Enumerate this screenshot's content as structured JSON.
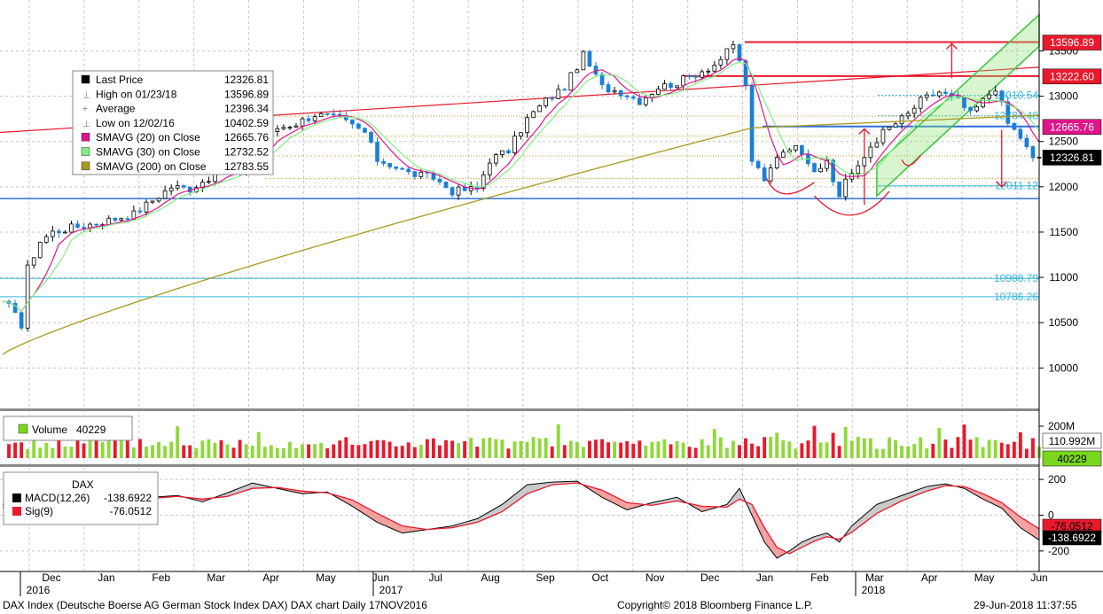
{
  "chart_data": [
    {
      "type": "candlestick",
      "title": "DAX Index (Deutsche Boerse AG German Stock Index DAX) DAX chart",
      "panel": "price",
      "ylim": [
        9700,
        13700
      ],
      "y_ticks": [
        "10000",
        "10500",
        "11000",
        "11500",
        "12000",
        "12500",
        "13000",
        "13500"
      ],
      "x_months": [
        "Dec",
        "Jan",
        "Feb",
        "Mar",
        "Apr",
        "May",
        "Jun",
        "Jul",
        "Aug",
        "Sep",
        "Oct",
        "Nov",
        "Dec",
        "Jan",
        "Feb",
        "Mar",
        "Apr",
        "May",
        "Jun"
      ],
      "x_years": [
        "2016",
        "2017",
        "2018"
      ],
      "price_path": [
        [
          0,
          10700
        ],
        [
          2,
          10650
        ],
        [
          3,
          10450
        ],
        [
          4,
          11100
        ],
        [
          6,
          11400
        ],
        [
          8,
          11500
        ],
        [
          11,
          11550
        ],
        [
          15,
          11600
        ],
        [
          18,
          11650
        ],
        [
          21,
          11700
        ],
        [
          24,
          11850
        ],
        [
          27,
          12000
        ],
        [
          30,
          11980
        ],
        [
          33,
          12100
        ],
        [
          36,
          12200
        ],
        [
          38,
          12100
        ],
        [
          39,
          12400
        ],
        [
          41,
          12450
        ],
        [
          44,
          12650
        ],
        [
          47,
          12700
        ],
        [
          50,
          12800
        ],
        [
          54,
          12750
        ],
        [
          58,
          12600
        ],
        [
          60,
          12300
        ],
        [
          62,
          12250
        ],
        [
          65,
          12150
        ],
        [
          69,
          12100
        ],
        [
          72,
          11950
        ],
        [
          76,
          11980
        ],
        [
          78,
          12300
        ],
        [
          81,
          12400
        ],
        [
          84,
          12750
        ],
        [
          87,
          12950
        ],
        [
          90,
          13100
        ],
        [
          93,
          13450
        ],
        [
          96,
          13100
        ],
        [
          99,
          13050
        ],
        [
          102,
          12950
        ],
        [
          105,
          13100
        ],
        [
          108,
          13150
        ],
        [
          111,
          13250
        ],
        [
          114,
          13350
        ],
        [
          117,
          13550
        ],
        [
          118,
          13400
        ],
        [
          119,
          13100
        ],
        [
          120,
          12300
        ],
        [
          122,
          12050
        ],
        [
          124,
          12350
        ],
        [
          126,
          12450
        ],
        [
          128,
          12400
        ],
        [
          130,
          12200
        ],
        [
          132,
          12250
        ],
        [
          133,
          12050
        ],
        [
          134,
          11900
        ],
        [
          135,
          12100
        ],
        [
          137,
          12200
        ],
        [
          139,
          12450
        ],
        [
          141,
          12600
        ],
        [
          143,
          12700
        ],
        [
          145,
          12800
        ],
        [
          147,
          12950
        ],
        [
          150,
          13050
        ],
        [
          153,
          12950
        ],
        [
          155,
          12800
        ],
        [
          157,
          12950
        ],
        [
          159,
          13100
        ],
        [
          161,
          12700
        ],
        [
          163,
          12550
        ],
        [
          165,
          12300
        ],
        [
          166,
          12326.81
        ]
      ],
      "x_period_count": 166,
      "legend": [
        {
          "label": "Last Price",
          "value": "12326.81",
          "color": "#000000"
        },
        {
          "label": "High on 01/23/18",
          "value": "13596.89",
          "color": "#888888"
        },
        {
          "label": "Average",
          "value": "12396.34",
          "color": "#888888"
        },
        {
          "label": "Low on 12/02/16",
          "value": "10402.59",
          "color": "#888888"
        },
        {
          "label": "SMAVG (20) on Close",
          "value": "12665.76",
          "color": "#e0158a"
        },
        {
          "label": "SMAVG (30) on Close",
          "value": "12732.52",
          "color": "#7ff07f"
        },
        {
          "label": "SMAVG (200) on Close",
          "value": "12783.55",
          "color": "#a89a1e"
        }
      ],
      "horizontal_levels": [
        {
          "value": 13596.89,
          "label": "13596.89",
          "color": "#e8192c"
        },
        {
          "value": 13222.6,
          "label": "13222.60",
          "color": "#e8192c"
        },
        {
          "value": 13010.54,
          "label": "13010.54",
          "color": "#34b8e0"
        },
        {
          "value": 12784.48,
          "label": "12784.48",
          "color": "#34b8e0"
        },
        {
          "value": 12665.76,
          "label": "12665.76",
          "color": "#2a6fdb"
        },
        {
          "value": 12011.12,
          "label": "12011.12",
          "color": "#34b8e0"
        },
        {
          "value": 10988.79,
          "label": "10988.79",
          "color": "#34b8e0"
        },
        {
          "value": 10786.26,
          "label": "10786.26",
          "color": "#34b8e0"
        }
      ],
      "axis_tags": [
        {
          "value": 13596.89,
          "label": "13596.89",
          "color": "#e8192c"
        },
        {
          "value": 13222.6,
          "label": "13222.60",
          "color": "#e8192c"
        },
        {
          "value": 12665.76,
          "label": "12665.76",
          "color": "#e0158a"
        },
        {
          "value": 12326.81,
          "label": "12326.81",
          "color": "#000000"
        }
      ]
    },
    {
      "type": "bar",
      "panel": "volume",
      "legend_label": "Volume",
      "legend_value": "40229",
      "y_ticks": [
        "200M"
      ],
      "axis_tags": [
        {
          "label": "110.992M",
          "color": "#ffffff"
        },
        {
          "label": "40229",
          "color": "#7bd61f"
        }
      ]
    },
    {
      "type": "line",
      "panel": "macd",
      "title": "DAX",
      "ylim": [
        -280,
        260
      ],
      "y_ticks": [
        "200",
        "0",
        "-200"
      ],
      "series": [
        {
          "name": "MACD(12,26)",
          "value": "-138.6922",
          "color": "#000000",
          "values": [
            [
              0,
              60
            ],
            [
              4,
              150
            ],
            [
              8,
              140
            ],
            [
              12,
              90
            ],
            [
              16,
              70
            ],
            [
              20,
              90
            ],
            [
              24,
              100
            ],
            [
              28,
              110
            ],
            [
              32,
              75
            ],
            [
              36,
              125
            ],
            [
              40,
              180
            ],
            [
              44,
              150
            ],
            [
              48,
              120
            ],
            [
              52,
              130
            ],
            [
              56,
              50
            ],
            [
              60,
              -40
            ],
            [
              64,
              -100
            ],
            [
              68,
              -80
            ],
            [
              72,
              -60
            ],
            [
              76,
              -20
            ],
            [
              80,
              60
            ],
            [
              84,
              170
            ],
            [
              88,
              185
            ],
            [
              92,
              190
            ],
            [
              96,
              100
            ],
            [
              100,
              30
            ],
            [
              104,
              70
            ],
            [
              108,
              100
            ],
            [
              112,
              20
            ],
            [
              116,
              60
            ],
            [
              118,
              150
            ],
            [
              120,
              0
            ],
            [
              122,
              -150
            ],
            [
              124,
              -240
            ],
            [
              126,
              -200
            ],
            [
              128,
              -150
            ],
            [
              130,
              -120
            ],
            [
              132,
              -100
            ],
            [
              134,
              -150
            ],
            [
              136,
              -60
            ],
            [
              140,
              60
            ],
            [
              144,
              110
            ],
            [
              148,
              160
            ],
            [
              151,
              175
            ],
            [
              154,
              150
            ],
            [
              157,
              90
            ],
            [
              160,
              40
            ],
            [
              163,
              -70
            ],
            [
              166,
              -138.69
            ]
          ]
        },
        {
          "name": "Sig(9)",
          "value": "-76.0512",
          "color": "#e8192c",
          "values": [
            [
              0,
              40
            ],
            [
              4,
              100
            ],
            [
              8,
              135
            ],
            [
              12,
              110
            ],
            [
              16,
              80
            ],
            [
              20,
              85
            ],
            [
              24,
              95
            ],
            [
              28,
              105
            ],
            [
              32,
              90
            ],
            [
              36,
              105
            ],
            [
              40,
              150
            ],
            [
              44,
              155
            ],
            [
              48,
              135
            ],
            [
              52,
              125
            ],
            [
              56,
              85
            ],
            [
              60,
              10
            ],
            [
              64,
              -60
            ],
            [
              68,
              -80
            ],
            [
              72,
              -70
            ],
            [
              76,
              -40
            ],
            [
              80,
              20
            ],
            [
              84,
              120
            ],
            [
              88,
              170
            ],
            [
              92,
              180
            ],
            [
              96,
              140
            ],
            [
              100,
              70
            ],
            [
              104,
              55
            ],
            [
              108,
              80
            ],
            [
              112,
              50
            ],
            [
              116,
              45
            ],
            [
              118,
              90
            ],
            [
              120,
              60
            ],
            [
              122,
              -70
            ],
            [
              124,
              -180
            ],
            [
              126,
              -215
            ],
            [
              128,
              -180
            ],
            [
              130,
              -145
            ],
            [
              132,
              -120
            ],
            [
              134,
              -135
            ],
            [
              136,
              -95
            ],
            [
              140,
              10
            ],
            [
              144,
              80
            ],
            [
              148,
              135
            ],
            [
              151,
              165
            ],
            [
              154,
              160
            ],
            [
              157,
              120
            ],
            [
              160,
              70
            ],
            [
              163,
              -10
            ],
            [
              166,
              -76.05
            ]
          ]
        }
      ],
      "axis_tags": [
        {
          "label": "-76.0512",
          "color": "#e8192c"
        },
        {
          "label": "-138.6922",
          "color": "#000000"
        }
      ]
    }
  ],
  "footer": {
    "left": "DAX Index (Deutsche Boerse AG German Stock Index DAX) DAX chart  Daily 17NOV2016",
    "center": "Copyright© 2018 Bloomberg Finance L.P.",
    "right": "29-Jun-2018 11:37:55"
  }
}
